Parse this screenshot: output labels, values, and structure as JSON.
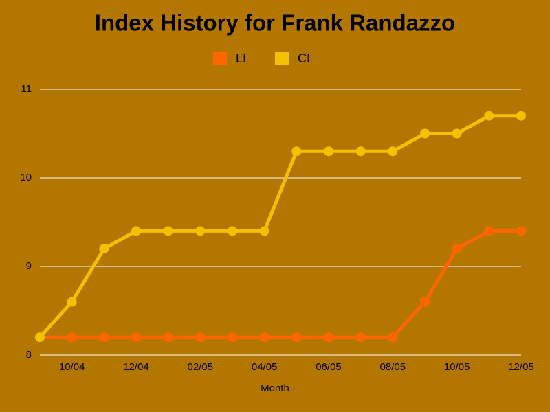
{
  "chart_data": {
    "type": "line",
    "title": "Index History for Frank Randazzo",
    "x_label": "Month",
    "categories": [
      null,
      "10/04",
      null,
      "12/04",
      null,
      "02/05",
      null,
      "04/05",
      null,
      "06/05",
      null,
      "08/05",
      null,
      "10/05",
      null,
      "12/05"
    ],
    "series": [
      {
        "name": "LI",
        "color": "#ff6600",
        "values": [
          8.2,
          8.2,
          8.2,
          8.2,
          8.2,
          8.2,
          8.2,
          8.2,
          8.2,
          8.2,
          8.2,
          8.2,
          8.6,
          9.2,
          9.4,
          9.4
        ]
      },
      {
        "name": "CI",
        "color": "#f2c200",
        "values": [
          8.2,
          8.6,
          9.2,
          9.4,
          9.4,
          9.4,
          9.4,
          9.4,
          10.3,
          10.3,
          10.3,
          10.3,
          10.5,
          10.5,
          10.7,
          10.7
        ]
      }
    ],
    "ylim": [
      8,
      11
    ],
    "yticks": [
      8,
      9,
      10,
      11
    ],
    "grid": true
  }
}
